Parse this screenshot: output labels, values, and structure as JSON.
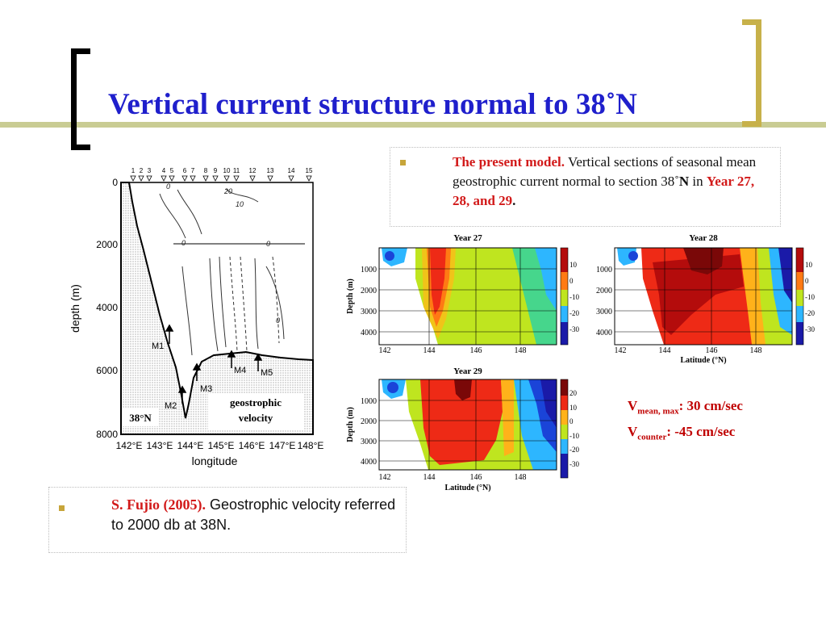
{
  "slide": {
    "title": "Vertical current structure normal to  38˚N"
  },
  "box_model": {
    "lead": "The present model.",
    "text1": " Vertical sections of seasonal mean geostrophic current normal to section 38˚",
    "text_n": "N",
    "text_in": " in ",
    "years": "Year 27, 28, and 29",
    "end": "."
  },
  "box_fujio": {
    "lead": "S. Fujio (2005).",
    "text": " Geostrophic velocity referred to 2000 db at 38N."
  },
  "velocity": {
    "v1": "V",
    "v1_sub": "mean, max",
    "v1_val": ": 30 cm/sec",
    "v2": "V",
    "v2_sub": "counter",
    "v2_val": ": -45 cm/sec"
  },
  "fujio_figure": {
    "station_numbers": [
      "1",
      "2",
      "3",
      "4",
      "5",
      "6",
      "7",
      "8",
      "9",
      "10",
      "11",
      "12",
      "13",
      "14",
      "15"
    ],
    "y_ticks": [
      "0",
      "2000",
      "4000",
      "6000",
      "8000"
    ],
    "x_ticks": [
      "142°E",
      "143°E",
      "144°E",
      "145°E",
      "146°E",
      "147°E",
      "148°E"
    ],
    "ylabel": "depth (m)",
    "xlabel": "longitude",
    "markers": [
      "M1",
      "M2",
      "M3",
      "M4",
      "M5"
    ],
    "contour_labels": [
      "0",
      "20",
      "10",
      "0",
      "0",
      "0"
    ],
    "section_label": "38°N",
    "legend_line1": "geostrophic",
    "legend_line2": "velocity"
  },
  "model_panels": {
    "y_ticks": [
      "1000",
      "2000",
      "3000",
      "4000"
    ],
    "x_ticks": [
      "142",
      "144",
      "146",
      "148"
    ],
    "ylabel": "Depth (m)",
    "xlabel": "Latitude (°N)",
    "panels": [
      {
        "title": "Year 27",
        "colorbar": [
          "10",
          "0",
          "-10",
          "-20",
          "-30"
        ]
      },
      {
        "title": "Year 28",
        "colorbar": [
          "10",
          "0",
          "-10",
          "-20",
          "-30"
        ]
      },
      {
        "title": "Year 29",
        "colorbar": [
          "20",
          "10",
          "0",
          "-10",
          "-20",
          "-30"
        ]
      }
    ]
  }
}
